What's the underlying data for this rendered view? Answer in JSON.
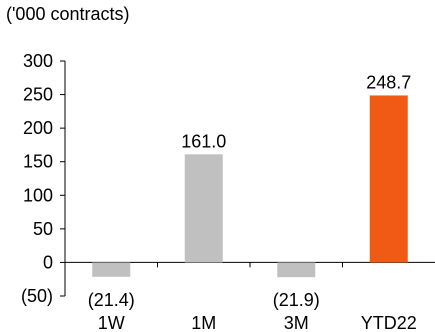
{
  "chart_data": {
    "type": "bar",
    "title": "('000 contracts)",
    "categories": [
      "1W",
      "1M",
      "3M",
      "YTD22"
    ],
    "values": [
      -21.4,
      161.0,
      -21.9,
      248.7
    ],
    "value_labels": [
      "(21.4)",
      "161.0",
      "(21.9)",
      "248.7"
    ],
    "yticks": [
      300,
      250,
      200,
      150,
      100,
      50,
      0,
      -50
    ],
    "ytick_labels": [
      "300",
      "250",
      "200",
      "150",
      "100",
      "50",
      "0",
      "(50)"
    ],
    "ylim": [
      -50,
      300
    ],
    "grid": false,
    "legend": "none",
    "colors": {
      "default_bar": "#c0c0c0",
      "highlight_bar": "#f05a14",
      "axis": "#000000",
      "text": "#000000"
    },
    "highlight_index": 3
  }
}
